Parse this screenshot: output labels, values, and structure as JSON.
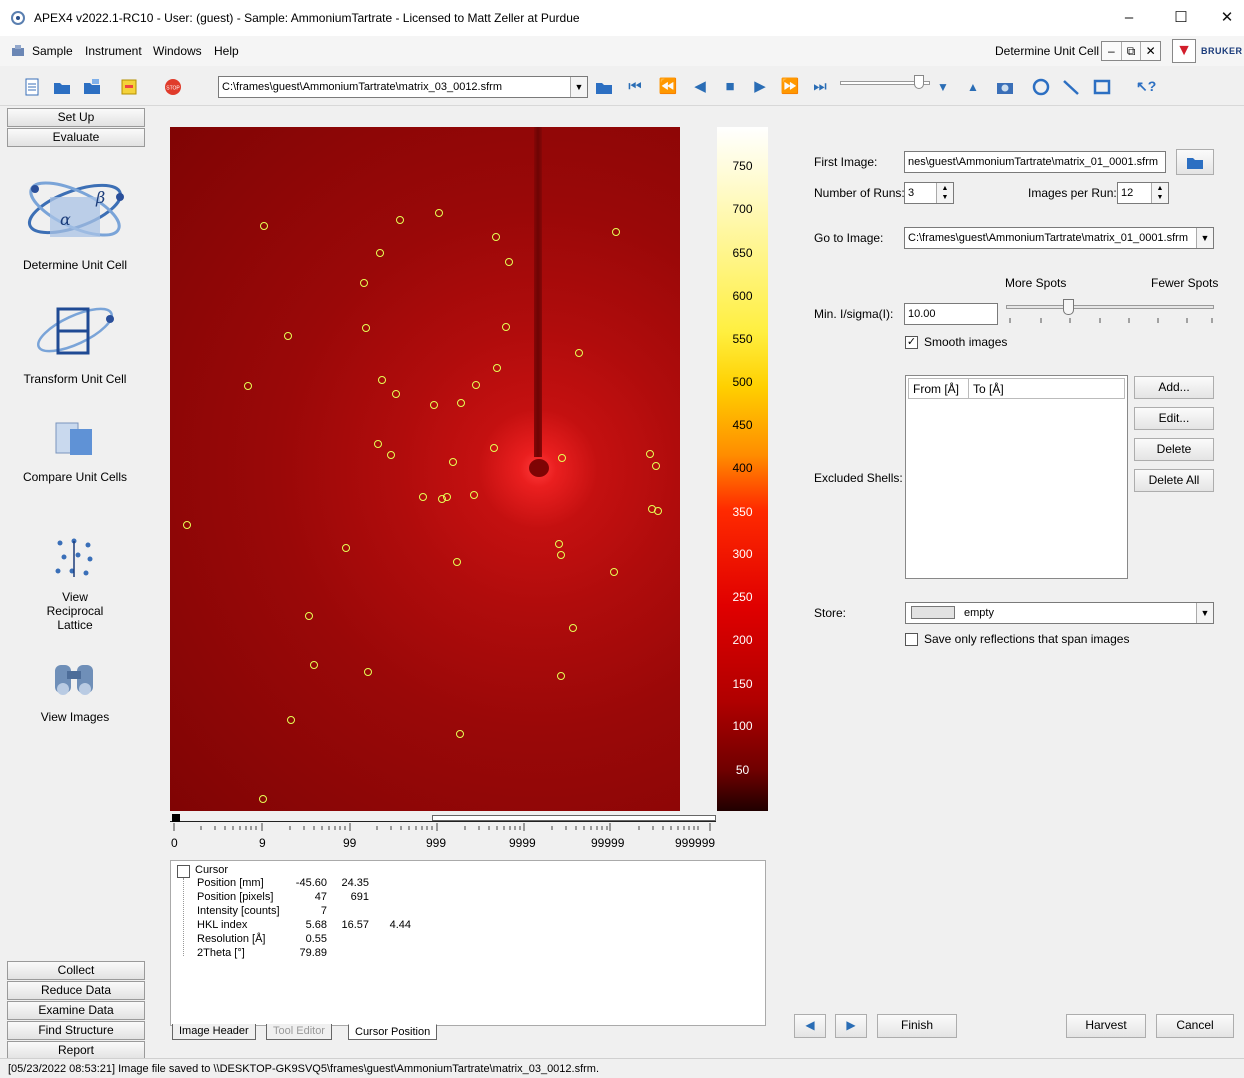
{
  "window": {
    "title": "APEX4 v2022.1-RC10 - User: (guest) - Sample: AmmoniumTartrate - Licensed to Matt Zeller at Purdue",
    "minimize": "–",
    "maximize": "☐",
    "close": "✕"
  },
  "menu": {
    "items": [
      "Sample",
      "Instrument",
      "Windows",
      "Help"
    ],
    "current_tool": "Determine Unit Cell",
    "brand": "BRUKER"
  },
  "toolbar": {
    "frame_path": "C:\\frames\\guest\\AmmoniumTartrate\\matrix_03_0012.sfrm"
  },
  "left": {
    "setup": "Set Up",
    "evaluate": "Evaluate",
    "tools": [
      "Determine Unit Cell",
      "Transform Unit Cell",
      "Compare Unit Cells",
      "View Reciprocal Lattice",
      "View Images"
    ],
    "bottom": [
      "Collect",
      "Reduce Data",
      "Examine Data",
      "Find Structure",
      "Report"
    ]
  },
  "colorbar": {
    "labels": [
      "750",
      "700",
      "650",
      "600",
      "550",
      "500",
      "450",
      "400",
      "350",
      "300",
      "250",
      "200",
      "150",
      "100",
      "50"
    ]
  },
  "scale": {
    "labels": [
      "0",
      "9",
      "99",
      "999",
      "9999",
      "99999",
      "999999"
    ]
  },
  "cursor": {
    "title": "Cursor",
    "rows": [
      {
        "name": "Position [mm]",
        "v1": "-45.60",
        "v2": "24.35",
        "v3": ""
      },
      {
        "name": "Position [pixels]",
        "v1": "47",
        "v2": "691",
        "v3": ""
      },
      {
        "name": "Intensity [counts]",
        "v1": "7",
        "v2": "",
        "v3": ""
      },
      {
        "name": "HKL index",
        "v1": "5.68",
        "v2": "16.57",
        "v3": "4.44"
      },
      {
        "name": "Resolution [Å]",
        "v1": "0.55",
        "v2": "",
        "v3": ""
      },
      {
        "name": "2Theta [°]",
        "v1": "79.89",
        "v2": "",
        "v3": ""
      }
    ]
  },
  "tabs": [
    "Image Header",
    "Tool Editor",
    "Cursor Position"
  ],
  "right": {
    "first_image_label": "First Image:",
    "first_image_value": "nes\\guest\\AmmoniumTartrate\\matrix_01_0001.sfrm",
    "runs_label": "Number of Runs:",
    "runs_value": "3",
    "per_run_label": "Images per Run:",
    "per_run_value": "12",
    "goto_label": "Go to Image:",
    "goto_value": "C:\\frames\\guest\\AmmoniumTartrate\\matrix_01_0001.sfrm",
    "more_spots": "More Spots",
    "fewer_spots": "Fewer Spots",
    "min_label": "Min. I/sigma(I):",
    "min_value": "10.00",
    "slider_level": 0.3,
    "smooth_label": "Smooth images",
    "smooth_checked": true,
    "shells_label": "Excluded Shells:",
    "col_from": "From [Å]",
    "col_to": "To [Å]",
    "add": "Add...",
    "edit": "Edit...",
    "delete": "Delete",
    "delete_all": "Delete All",
    "store_label": "Store:",
    "store_value": "empty",
    "span_label": "Save only reflections that span images",
    "span_checked": false,
    "finish": "Finish",
    "harvest": "Harvest",
    "cancel": "Cancel"
  },
  "status": "[05/23/2022 08:53:21] Image file saved to \\\\DESKTOP-GK9SVQ5\\frames\\guest\\AmmoniumTartrate\\matrix_03_0012.sfrm."
}
